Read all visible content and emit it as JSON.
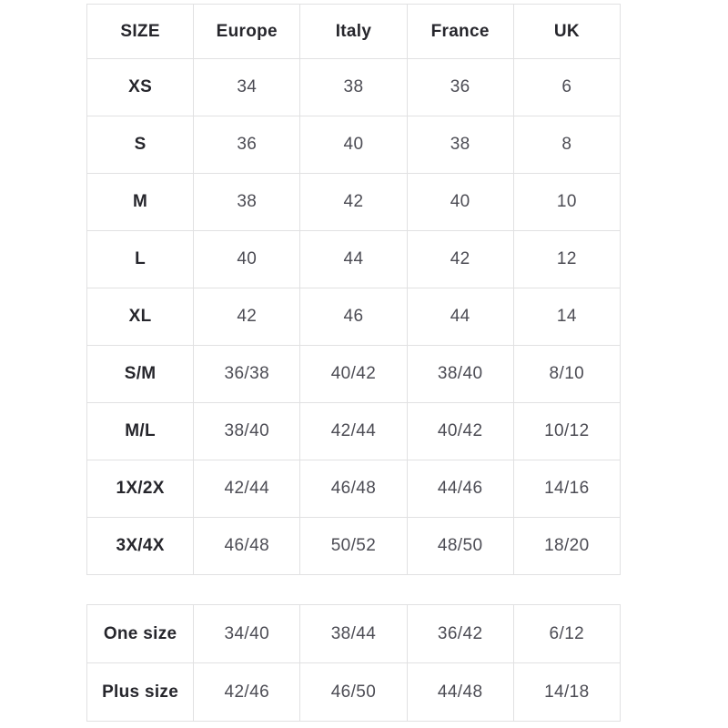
{
  "colors": {
    "background": "#ffffff",
    "border": "#e1e1e2",
    "header_text": "#26262c",
    "cell_text": "#4c4c54"
  },
  "main_table": {
    "columns": [
      "SIZE",
      "Europe",
      "Italy",
      "France",
      "UK"
    ],
    "rows": [
      {
        "size": "XS",
        "values": [
          "34",
          "38",
          "36",
          "6"
        ]
      },
      {
        "size": "S",
        "values": [
          "36",
          "40",
          "38",
          "8"
        ]
      },
      {
        "size": "M",
        "values": [
          "38",
          "42",
          "40",
          "10"
        ]
      },
      {
        "size": "L",
        "values": [
          "40",
          "44",
          "42",
          "12"
        ]
      },
      {
        "size": "XL",
        "values": [
          "42",
          "46",
          "44",
          "14"
        ]
      },
      {
        "size": "S/M",
        "values": [
          "36/38",
          "40/42",
          "38/40",
          "8/10"
        ]
      },
      {
        "size": "M/L",
        "values": [
          "38/40",
          "42/44",
          "40/42",
          "10/12"
        ]
      },
      {
        "size": "1X/2X",
        "values": [
          "42/44",
          "46/48",
          "44/46",
          "14/16"
        ]
      },
      {
        "size": "3X/4X",
        "values": [
          "46/48",
          "50/52",
          "48/50",
          "18/20"
        ]
      }
    ]
  },
  "secondary_table": {
    "rows": [
      {
        "size": "One size",
        "values": [
          "34/40",
          "38/44",
          "36/42",
          "6/12"
        ]
      },
      {
        "size": "Plus size",
        "values": [
          "42/46",
          "46/50",
          "44/48",
          "14/18"
        ]
      }
    ]
  },
  "chart_data": {
    "type": "table",
    "columns": [
      "SIZE",
      "Europe",
      "Italy",
      "France",
      "UK"
    ],
    "rows": [
      [
        "XS",
        "34",
        "38",
        "36",
        "6"
      ],
      [
        "S",
        "36",
        "40",
        "38",
        "8"
      ],
      [
        "M",
        "38",
        "42",
        "40",
        "10"
      ],
      [
        "L",
        "40",
        "44",
        "42",
        "12"
      ],
      [
        "XL",
        "42",
        "46",
        "44",
        "14"
      ],
      [
        "S/M",
        "36/38",
        "40/42",
        "38/40",
        "8/10"
      ],
      [
        "M/L",
        "38/40",
        "42/44",
        "40/42",
        "10/12"
      ],
      [
        "1X/2X",
        "42/44",
        "46/48",
        "44/46",
        "14/16"
      ],
      [
        "3X/4X",
        "46/48",
        "50/52",
        "48/50",
        "18/20"
      ],
      [
        "One size",
        "34/40",
        "38/44",
        "36/42",
        "6/12"
      ],
      [
        "Plus size",
        "42/46",
        "46/50",
        "44/48",
        "14/18"
      ]
    ],
    "layout": {
      "grid": true,
      "two_sections": true,
      "header_row": true
    }
  }
}
